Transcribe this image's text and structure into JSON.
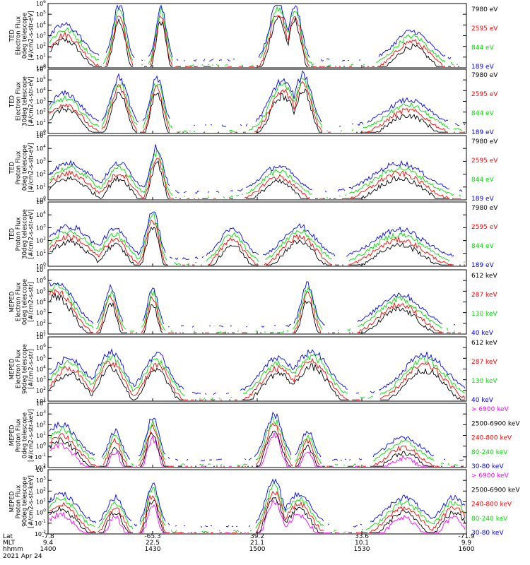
{
  "colors": {
    "black": "#000000",
    "red": "#ff0000",
    "green": "#00dd00",
    "blue": "#0000ff",
    "magenta": "#ff00ff"
  },
  "chart_data": [
    {
      "type": "line",
      "yscale": "log",
      "ylim": [
        1,
        1000000
      ],
      "ytick_exponents": [
        0,
        1,
        2,
        3,
        4,
        5,
        6
      ],
      "ylabel": [
        "TED",
        "Electron Flux",
        "0deg telescope",
        "[#/cm2-s-str-eV]"
      ],
      "series": [
        {
          "name": "7980 eV",
          "color": "#000000"
        },
        {
          "name": "2595 eV",
          "color": "#ff0000"
        },
        {
          "name": "844 eV",
          "color": "#00dd00"
        },
        {
          "name": "189 eV",
          "color": "#0000ff"
        }
      ]
    },
    {
      "type": "line",
      "yscale": "log",
      "ylim": [
        1,
        1000000
      ],
      "ytick_exponents": [
        0,
        1,
        2,
        3,
        4,
        5,
        6
      ],
      "ylabel": [
        "TED",
        "Electron Flux",
        "30deg telescope",
        "[#/cm2-s-str-eV]"
      ],
      "series": [
        {
          "name": "7980 eV",
          "color": "#000000"
        },
        {
          "name": "2595 eV",
          "color": "#ff0000"
        },
        {
          "name": "844 eV",
          "color": "#00dd00"
        },
        {
          "name": "189 eV",
          "color": "#0000ff"
        }
      ]
    },
    {
      "type": "line",
      "yscale": "log",
      "ylim": [
        1,
        100000
      ],
      "ytick_exponents": [
        0,
        1,
        2,
        3,
        4,
        5
      ],
      "ylabel": [
        "TED",
        "Proton Flux",
        "0deg telescope",
        "[#/cm2-s-str-eV]"
      ],
      "series": [
        {
          "name": "7980 eV",
          "color": "#000000"
        },
        {
          "name": "2595 eV",
          "color": "#ff0000"
        },
        {
          "name": "844 eV",
          "color": "#00dd00"
        },
        {
          "name": "189 eV",
          "color": "#0000ff"
        }
      ]
    },
    {
      "type": "line",
      "yscale": "log",
      "ylim": [
        1,
        100000
      ],
      "ytick_exponents": [
        0,
        1,
        2,
        3,
        4,
        5
      ],
      "ylabel": [
        "TED",
        "Proton Flux",
        "30deg telescope",
        "[#/cm2-s-str-eV]"
      ],
      "series": [
        {
          "name": "7980 eV",
          "color": "#000000"
        },
        {
          "name": "2595 eV",
          "color": "#ff0000"
        },
        {
          "name": "844 eV",
          "color": "#00dd00"
        },
        {
          "name": "189 eV",
          "color": "#0000ff"
        }
      ]
    },
    {
      "type": "line",
      "yscale": "log",
      "ylim": [
        10,
        10000000
      ],
      "ytick_exponents": [
        1,
        2,
        3,
        4,
        5,
        6,
        7
      ],
      "ylabel": [
        "MEPED",
        "Electron Flux",
        "0deg telescope",
        "[#/cm2-s-str]"
      ],
      "series": [
        {
          "name": "612 keV",
          "color": "#000000"
        },
        {
          "name": "287 keV",
          "color": "#ff0000"
        },
        {
          "name": "130 keV",
          "color": "#00dd00"
        },
        {
          "name": "40 keV",
          "color": "#0000ff"
        }
      ]
    },
    {
      "type": "line",
      "yscale": "log",
      "ylim": [
        10,
        10000000
      ],
      "ytick_exponents": [
        1,
        2,
        3,
        4,
        5,
        6,
        7
      ],
      "ylabel": [
        "MEPED",
        "Electron Flux",
        "90deg telescope",
        "[#/cm2-s-str]"
      ],
      "series": [
        {
          "name": "612 keV",
          "color": "#000000"
        },
        {
          "name": "287 keV",
          "color": "#ff0000"
        },
        {
          "name": "130 keV",
          "color": "#00dd00"
        },
        {
          "name": "40 keV",
          "color": "#0000ff"
        }
      ]
    },
    {
      "type": "line",
      "yscale": "log",
      "ylim": [
        0.01,
        10000
      ],
      "ytick_exponents": [
        -2,
        -1,
        0,
        1,
        2,
        3,
        4
      ],
      "ylabel": [
        "MEPED",
        "Proton Flux",
        "0deg telescope",
        "[#/cm2-s-str-keV]"
      ],
      "series": [
        {
          "name": "> 6900 keV",
          "color": "#ff00ff"
        },
        {
          "name": "2500-6900 keV",
          "color": "#000000"
        },
        {
          "name": "240-800 keV",
          "color": "#ff0000"
        },
        {
          "name": "80-240 keV",
          "color": "#00dd00"
        },
        {
          "name": "30-80 keV",
          "color": "#0000ff"
        }
      ]
    },
    {
      "type": "line",
      "yscale": "log",
      "ylim": [
        0.01,
        10000
      ],
      "ytick_exponents": [
        -2,
        -1,
        0,
        1,
        2,
        3,
        4
      ],
      "ylabel": [
        "MEPED",
        "Proton Flux",
        "90deg telescope",
        "[#/cm2-s-str-keV]"
      ],
      "series": [
        {
          "name": "> 6900 keV",
          "color": "#ff00ff"
        },
        {
          "name": "2500-6900 keV",
          "color": "#000000"
        },
        {
          "name": "240-800 keV",
          "color": "#ff0000"
        },
        {
          "name": "80-240 keV",
          "color": "#00dd00"
        },
        {
          "name": "30-80 keV",
          "color": "#0000ff"
        }
      ]
    }
  ],
  "x_axis": {
    "rows": [
      "Lat",
      "MLT",
      "hhmm"
    ],
    "date": "2021 Apr 24",
    "ticks": [
      {
        "Lat": "-7.8",
        "MLT": "9.4",
        "hhmm": "1400"
      },
      {
        "Lat": "-65.3",
        "MLT": "22.5",
        "hhmm": "1430"
      },
      {
        "Lat": "39.2",
        "MLT": "21.1",
        "hhmm": "1500"
      },
      {
        "Lat": "33.6",
        "MLT": "10.1",
        "hhmm": "1530"
      },
      {
        "Lat": "-71.9",
        "MLT": "9.9",
        "hhmm": "1600"
      }
    ]
  }
}
